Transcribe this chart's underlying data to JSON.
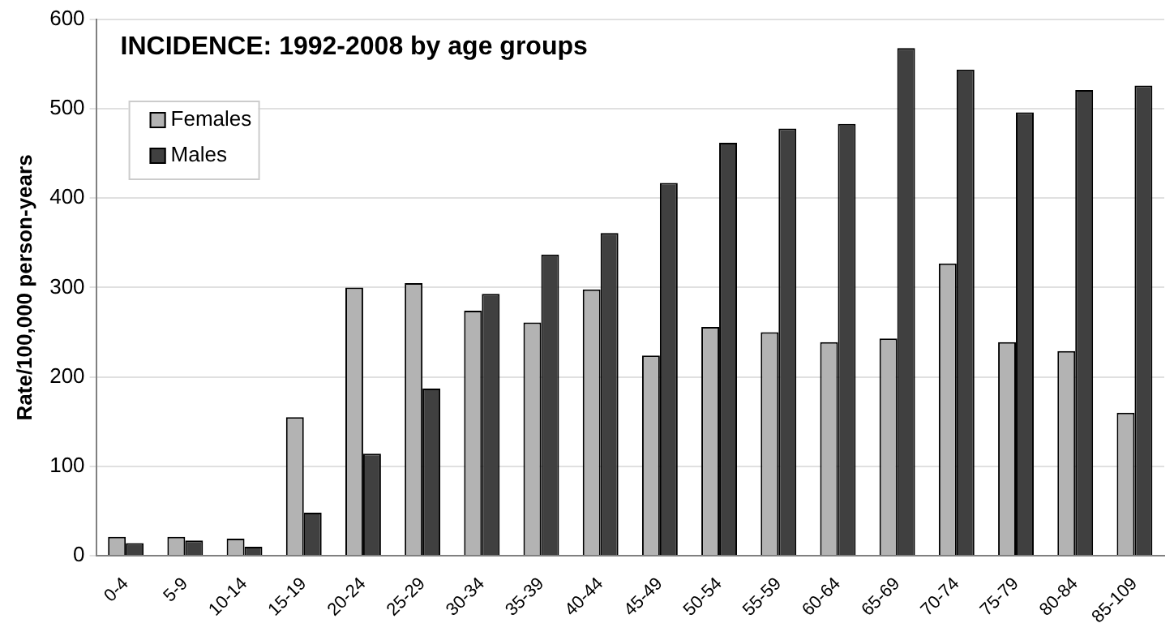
{
  "chart_data": {
    "type": "bar",
    "title": "INCIDENCE: 1992-2008 by age groups",
    "ylabel": "Rate/100,000 person-years",
    "categories": [
      "0-4",
      "5-9",
      "10-14",
      "15-19",
      "20-24",
      "25-29",
      "30-34",
      "35-39",
      "40-44",
      "45-49",
      "50-54",
      "55-59",
      "60-64",
      "65-69",
      "70-74",
      "75-79",
      "80-84",
      "85-109"
    ],
    "series": [
      {
        "name": "Females",
        "color": "#b3b3b3",
        "values": [
          21,
          21,
          19,
          155,
          300,
          305,
          274,
          261,
          298,
          224,
          256,
          250,
          239,
          243,
          327,
          239,
          229,
          160
        ]
      },
      {
        "name": "Males",
        "color": "#404040",
        "values": [
          14,
          17,
          10,
          48,
          114,
          187,
          293,
          337,
          361,
          417,
          462,
          478,
          483,
          568,
          544,
          496,
          521,
          526
        ]
      }
    ],
    "ylim": [
      0,
      600
    ],
    "yticks": [
      0,
      100,
      200,
      300,
      400,
      500,
      600
    ],
    "grid": "y",
    "legend": "top left"
  }
}
